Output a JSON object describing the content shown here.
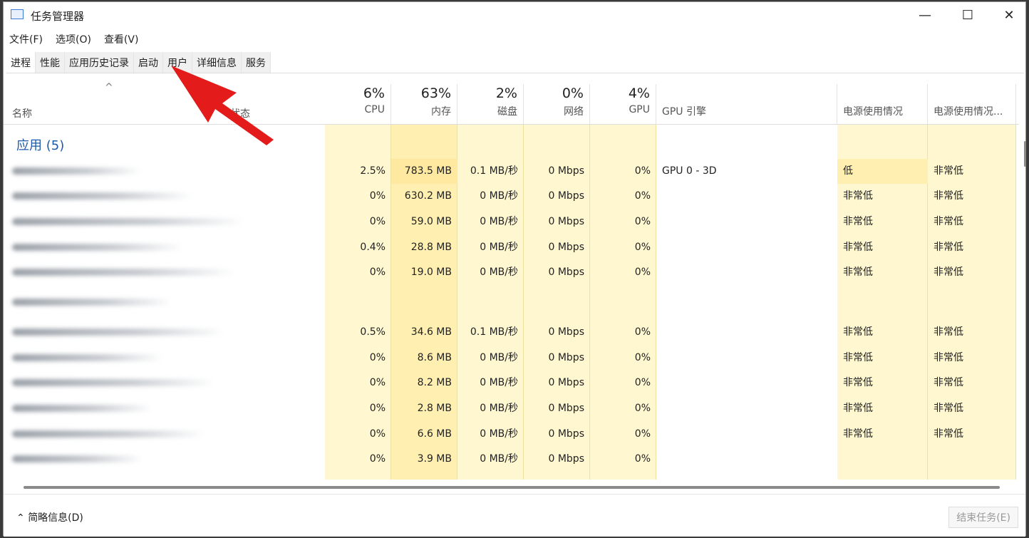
{
  "window": {
    "title": "任务管理器",
    "minimize": "—",
    "maximize": "☐",
    "close": "✕"
  },
  "menu": [
    "文件(F)",
    "选项(O)",
    "查看(V)"
  ],
  "tabs": [
    "进程",
    "性能",
    "应用历史记录",
    "启动",
    "用户",
    "详细信息",
    "服务"
  ],
  "active_tab": "进程",
  "columns": {
    "name": "名称",
    "status": "状态",
    "metrics": [
      {
        "pct": "6%",
        "label": "CPU"
      },
      {
        "pct": "63%",
        "label": "内存"
      },
      {
        "pct": "2%",
        "label": "磁盘"
      },
      {
        "pct": "0%",
        "label": "网络"
      },
      {
        "pct": "4%",
        "label": "GPU"
      }
    ],
    "gpu_engine": "GPU 引擎",
    "power": "电源使用情况",
    "power_trend": "电源使用情况..."
  },
  "group": "应用 (5)",
  "rows": [
    [
      "2.5%",
      "783.5 MB",
      "0.1 MB/秒",
      "0 Mbps",
      "0%",
      "GPU 0 - 3D",
      "低",
      "非常低"
    ],
    [
      "0%",
      "630.2 MB",
      "0 MB/秒",
      "0 Mbps",
      "0%",
      "",
      "非常低",
      "非常低"
    ],
    [
      "0%",
      "59.0 MB",
      "0 MB/秒",
      "0 Mbps",
      "0%",
      "",
      "非常低",
      "非常低"
    ],
    [
      "0.4%",
      "28.8 MB",
      "0 MB/秒",
      "0 Mbps",
      "0%",
      "",
      "非常低",
      "非常低"
    ],
    [
      "0%",
      "19.0 MB",
      "0 MB/秒",
      "0 Mbps",
      "0%",
      "",
      "非常低",
      "非常低"
    ],
    null,
    [
      "0.5%",
      "34.6 MB",
      "0.1 MB/秒",
      "0 Mbps",
      "0%",
      "",
      "非常低",
      "非常低"
    ],
    [
      "0%",
      "8.6 MB",
      "0 MB/秒",
      "0 Mbps",
      "0%",
      "",
      "非常低",
      "非常低"
    ],
    [
      "0%",
      "8.2 MB",
      "0 MB/秒",
      "0 Mbps",
      "0%",
      "",
      "非常低",
      "非常低"
    ],
    [
      "0%",
      "2.8 MB",
      "0 MB/秒",
      "0 Mbps",
      "0%",
      "",
      "非常低",
      "非常低"
    ],
    [
      "0%",
      "6.6 MB",
      "0 MB/秒",
      "0 Mbps",
      "0%",
      "",
      "非常低",
      "非常低"
    ],
    [
      "0%",
      "3.9 MB",
      "0 MB/秒",
      "0 Mbps",
      "0%",
      "",
      "",
      ""
    ]
  ],
  "footer": {
    "brief": "简略信息(D)",
    "end_task": "结束任务(E)"
  },
  "colors": {
    "accent": "#1e5ba8",
    "cell": "#fff7cf",
    "cell_dark": "#ffefb0",
    "annotation_arrow": "#e31b1b"
  }
}
